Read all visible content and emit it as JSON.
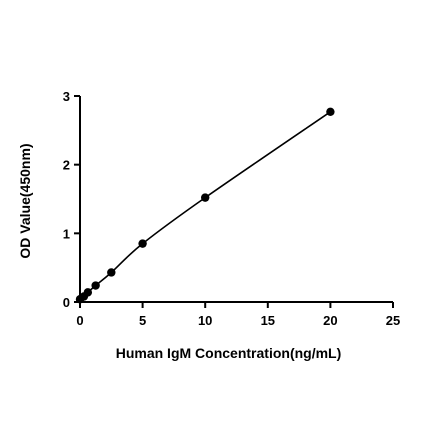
{
  "chart_data": {
    "type": "scatter",
    "title": "",
    "xlabel": "Human IgM Concentration(ng/mL)",
    "ylabel": "OD Value(450nm)",
    "xlim": [
      0,
      25
    ],
    "ylim": [
      0,
      3
    ],
    "x_ticks": [
      0,
      5,
      10,
      15,
      20,
      25
    ],
    "y_ticks": [
      0,
      1,
      2,
      3
    ],
    "grid": false,
    "legend": "none",
    "fit_line": true,
    "series": [
      {
        "x": [
          0,
          0.3125,
          0.625,
          1.25,
          2.5,
          5,
          10,
          20
        ],
        "y": [
          0.04,
          0.08,
          0.14,
          0.24,
          0.43,
          0.85,
          1.52,
          2.77
        ]
      }
    ],
    "colors": {
      "marker": "#000000",
      "line": "#000000",
      "axis": "#000000"
    }
  }
}
